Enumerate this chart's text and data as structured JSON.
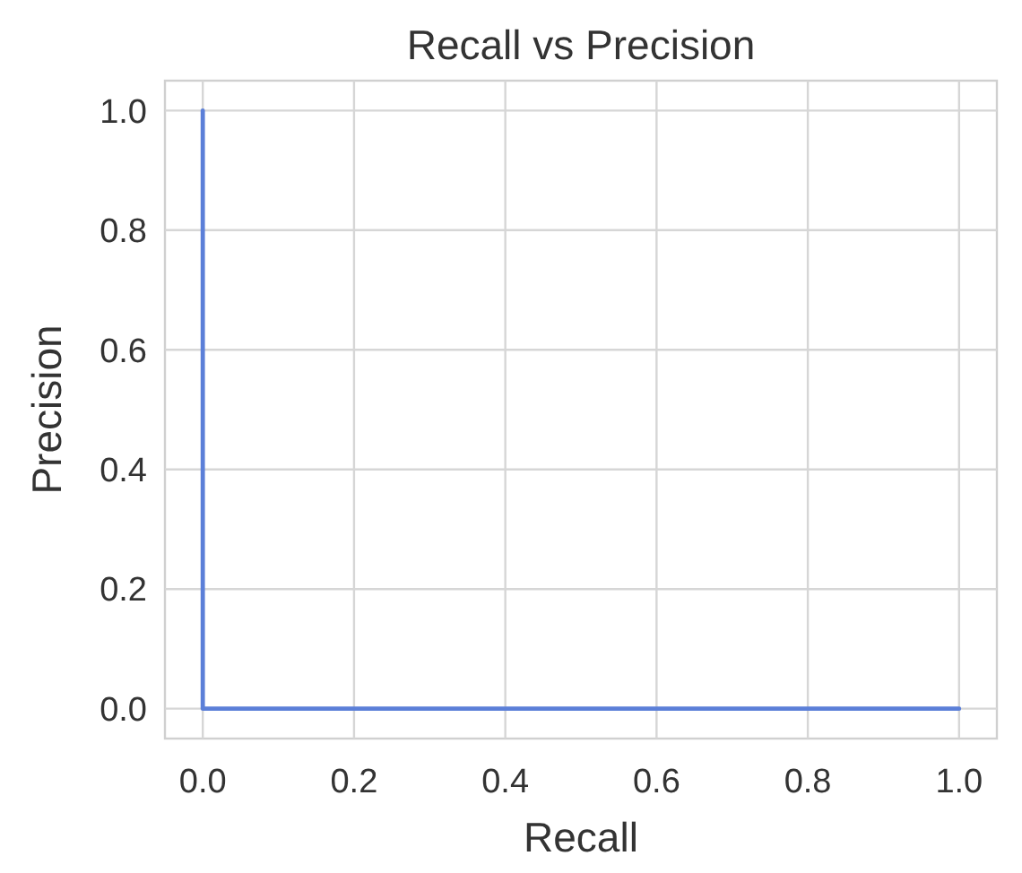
{
  "chart_data": {
    "type": "step",
    "title": "Recall vs Precision",
    "xlabel": "Recall",
    "ylabel": "Precision",
    "series": [
      {
        "color": "#5b7fd8",
        "x": [
          0,
          1
        ],
        "values": [
          1,
          0
        ]
      }
    ],
    "xlim": [
      -0.05,
      1.05
    ],
    "ylim": [
      -0.05,
      1.05
    ],
    "xticks": [
      {
        "value": 0,
        "label": "0.0"
      },
      {
        "value": 0.2,
        "label": "0.2"
      },
      {
        "value": 0.4,
        "label": "0.4"
      },
      {
        "value": 0.6,
        "label": "0.6"
      },
      {
        "value": 0.8,
        "label": "0.8"
      },
      {
        "value": 1,
        "label": "1.0"
      }
    ],
    "yticks": [
      {
        "value": 0,
        "label": "0.0"
      },
      {
        "value": 0.2,
        "label": "0.2"
      },
      {
        "value": 0.4,
        "label": "0.4"
      },
      {
        "value": 0.6,
        "label": "0.6"
      },
      {
        "value": 0.8,
        "label": "0.8"
      },
      {
        "value": 1,
        "label": "1.0"
      }
    ],
    "grid": true,
    "marker": "none",
    "line_style": "solid"
  }
}
